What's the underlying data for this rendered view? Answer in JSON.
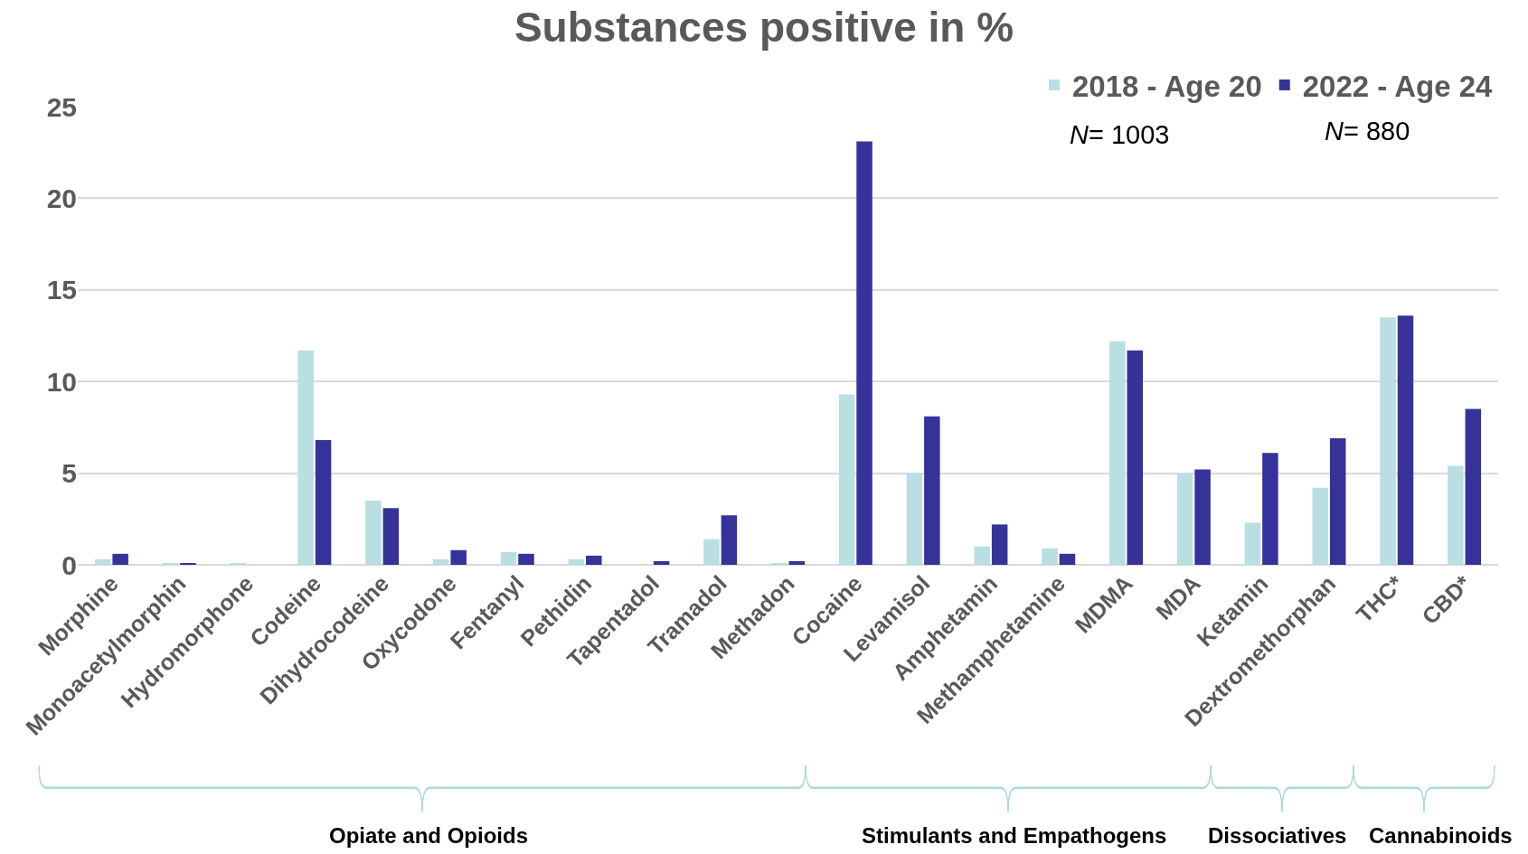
{
  "chart_data": {
    "type": "bar",
    "title": "Substances positive in %",
    "categories": [
      "Morphine",
      "Monoacetylmorphin",
      "Hydromorphone",
      "Codeine",
      "Dihydrocodeine",
      "Oxycodone",
      "Fentanyl",
      "Pethidin",
      "Tapentadol",
      "Tramadol",
      "Methadon",
      "Cocaine",
      "Levamisol",
      "Amphetamin",
      "Methamphetamine",
      "MDMA",
      "MDA",
      "Ketamin",
      "Dextromethorphan",
      "THC*",
      "CBD*"
    ],
    "series": [
      {
        "name": "2018 - Age 20",
        "color": "#b9dfe2",
        "values": [
          0.3,
          0.1,
          0.1,
          11.7,
          3.5,
          0.3,
          0.7,
          0.3,
          0,
          1.4,
          0.1,
          9.3,
          5.0,
          1.0,
          0.9,
          12.2,
          5.0,
          2.3,
          4.2,
          13.5,
          5.4
        ]
      },
      {
        "name": "2022 - Age 24",
        "color": "#353399",
        "values": [
          0.6,
          0.1,
          0,
          6.8,
          3.1,
          0.8,
          0.6,
          0.5,
          0.2,
          2.7,
          0.2,
          23.1,
          8.1,
          2.2,
          0.6,
          11.7,
          5.2,
          6.1,
          6.9,
          13.6,
          8.5
        ]
      }
    ],
    "ylim": [
      0,
      25
    ],
    "yticks": [
      0,
      5,
      10,
      15,
      20,
      25
    ],
    "grid": "y",
    "legend": "top right",
    "annotations": [
      "N= 1003",
      "N= 880",
      "Opiate and Opioids",
      "Stimulants and Empathogens",
      "Dissociatives",
      "Cannabinoids"
    ]
  }
}
